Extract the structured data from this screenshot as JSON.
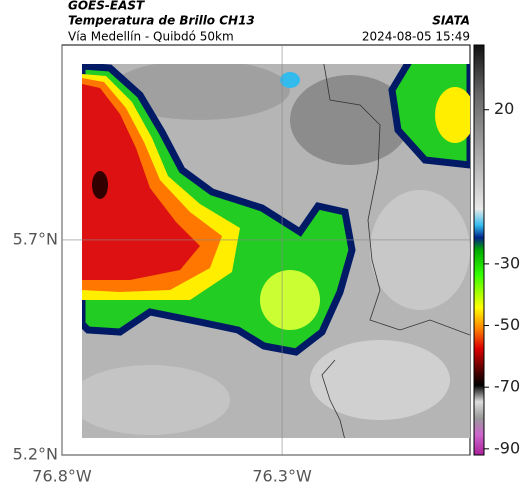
{
  "header": {
    "title": "GOES-EAST",
    "subtitle": "Temperatura de Brillo CH13",
    "source": "SIATA",
    "route": "Vía Medellín - Quibdó 50km",
    "timestamp": "2024-08-05 15:49"
  },
  "map": {
    "lon_lim": [
      -76.8,
      -75.873
    ],
    "lat_lim": [
      5.2,
      6.153
    ],
    "lat_ticks": [
      {
        "value": 5.7,
        "label": "5.7°N"
      },
      {
        "value": 5.2,
        "label": "5.2°N"
      }
    ],
    "lon_ticks": [
      {
        "value": -76.8,
        "label": "76.8°W"
      },
      {
        "value": -76.3,
        "label": "76.3°W"
      }
    ]
  },
  "colorbar": {
    "lim": [
      -92,
      41
    ],
    "ticks": [
      20,
      -30,
      -50,
      -70,
      -90
    ]
  }
}
